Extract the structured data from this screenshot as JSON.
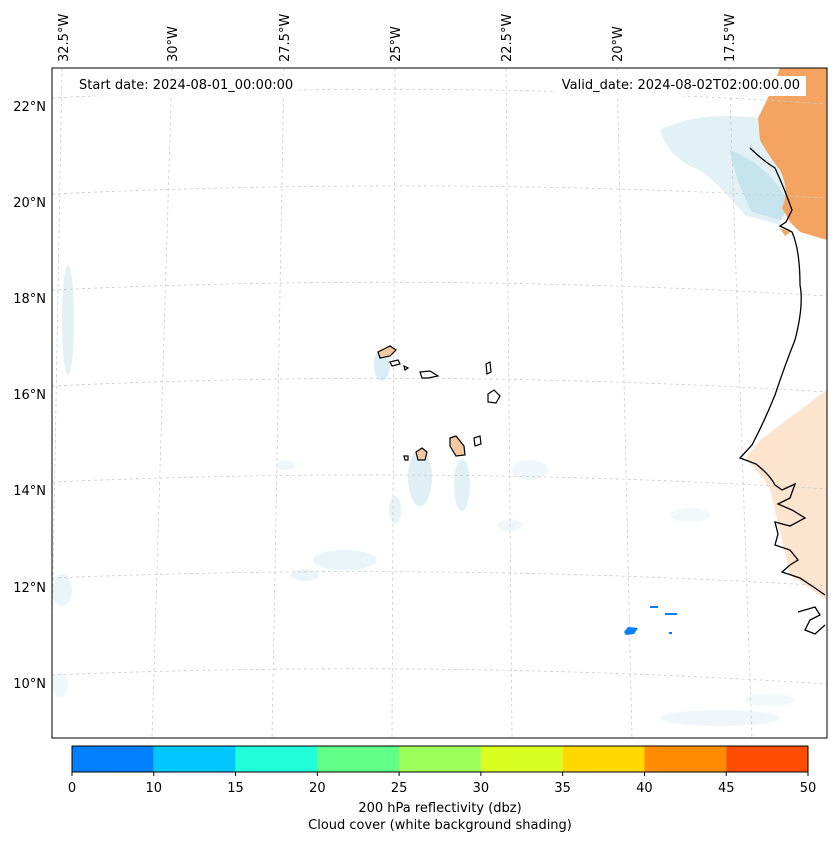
{
  "header": {
    "start_date": "Start date: 2024-08-01_00:00:00",
    "valid_date": "Valid_date: 2024-08-02T02:00:00.00"
  },
  "map": {
    "projection": "conic",
    "gridlines": "dashed light grey",
    "lon_labels": [
      "32.5°W",
      "30°W",
      "27.5°W",
      "25°W",
      "22.5°W",
      "20°W",
      "17.5°W"
    ],
    "lat_labels": [
      "22°N",
      "20°N",
      "18°N",
      "16°N",
      "14°N",
      "12°N",
      "10°N"
    ],
    "land_color": "#f4a460",
    "cloud_color": "#add8e6",
    "coastline_color": "#000000"
  },
  "colorbar": {
    "ticks": [
      "0",
      "10",
      "15",
      "20",
      "25",
      "30",
      "35",
      "40",
      "45",
      "50"
    ],
    "bins": [
      {
        "from": 0,
        "to": 10,
        "color": "#0080ff"
      },
      {
        "from": 10,
        "to": 15,
        "color": "#00c8ff"
      },
      {
        "from": 15,
        "to": 20,
        "color": "#20ffd8"
      },
      {
        "from": 20,
        "to": 25,
        "color": "#60ff88"
      },
      {
        "from": 25,
        "to": 30,
        "color": "#9cff5a"
      },
      {
        "from": 30,
        "to": 35,
        "color": "#d8ff20"
      },
      {
        "from": 35,
        "to": 40,
        "color": "#ffd800"
      },
      {
        "from": 40,
        "to": 45,
        "color": "#ff8c00"
      },
      {
        "from": 45,
        "to": 50,
        "color": "#ff4d00"
      }
    ],
    "label_line1": "200 hPa reflectivity (dbz)",
    "label_line2": "Cloud cover (white background shading)"
  }
}
